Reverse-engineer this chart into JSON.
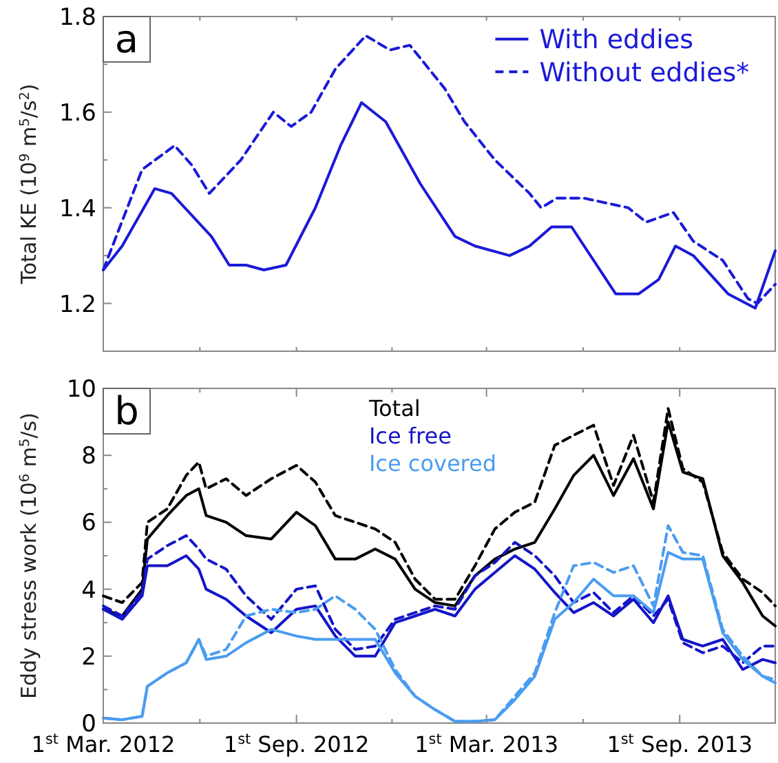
{
  "chart_data": [
    {
      "type": "line",
      "ylabel": "Total KE (10$^{9}$ m$^{5}$/s$^{2}$)",
      "annotations": [
        "a"
      ],
      "legend": "top right",
      "tick_labels": "y",
      "xlim": [
        "2012-03-01",
        "2013-12-01"
      ],
      "xticks": [
        {
          "value": "2012-03-01",
          "label": null
        },
        {
          "value": "2012-06-01",
          "label": null
        },
        {
          "value": "2012-09-01",
          "label": null
        },
        {
          "value": "2012-12-01",
          "label": null
        },
        {
          "value": "2013-03-01",
          "label": null
        },
        {
          "value": "2013-06-01",
          "label": null
        },
        {
          "value": "2013-09-01",
          "label": null
        }
      ],
      "ylim": [
        1.1,
        1.8
      ],
      "yticks": [
        1.2,
        {
          "value": 1.3,
          "label": null
        },
        1.4,
        {
          "value": 1.5,
          "label": null
        },
        1.6,
        {
          "value": 1.7,
          "label": null
        },
        1.8
      ],
      "series": [
        {
          "name": "With eddies",
          "color": "#1a1ad8",
          "line_style": "solid",
          "x": [
            "2012-03-01",
            "2012-03-19",
            "2012-04-19",
            "2012-05-05",
            "2012-06-12",
            "2012-06-29",
            "2012-07-15",
            "2012-08-01",
            "2012-08-22",
            "2012-09-19",
            "2012-10-13",
            "2012-11-02",
            "2012-11-25",
            "2012-12-28",
            "2013-01-30",
            "2013-02-18",
            "2013-03-23",
            "2013-04-11",
            "2013-05-02",
            "2013-05-21",
            "2013-07-02",
            "2013-07-24",
            "2013-08-12",
            "2013-08-28",
            "2013-09-14",
            "2013-10-17",
            "2013-11-12",
            "2013-12-01"
          ],
          "values": [
            1.27,
            1.32,
            1.44,
            1.43,
            1.34,
            1.28,
            1.28,
            1.27,
            1.28,
            1.4,
            1.53,
            1.62,
            1.58,
            1.45,
            1.34,
            1.32,
            1.3,
            1.32,
            1.36,
            1.36,
            1.22,
            1.22,
            1.25,
            1.32,
            1.3,
            1.22,
            1.19,
            1.31
          ]
        },
        {
          "name": "Without eddies*",
          "color": "#1a1ad8",
          "line_style": "dashed",
          "x": [
            "2012-03-01",
            "2012-04-07",
            "2012-05-08",
            "2012-05-24",
            "2012-06-10",
            "2012-07-10",
            "2012-08-10",
            "2012-08-27",
            "2012-09-15",
            "2012-10-08",
            "2012-11-06",
            "2012-11-29",
            "2012-12-18",
            "2013-01-20",
            "2013-02-08",
            "2013-03-09",
            "2013-04-11",
            "2013-04-22",
            "2013-05-07",
            "2013-06-02",
            "2013-07-14",
            "2013-07-31",
            "2013-08-26",
            "2013-09-14",
            "2013-10-12",
            "2013-11-05",
            "2013-11-14",
            "2013-12-01"
          ],
          "values": [
            1.27,
            1.48,
            1.53,
            1.49,
            1.43,
            1.5,
            1.6,
            1.57,
            1.6,
            1.69,
            1.76,
            1.73,
            1.74,
            1.65,
            1.58,
            1.5,
            1.43,
            1.4,
            1.42,
            1.42,
            1.4,
            1.37,
            1.39,
            1.33,
            1.29,
            1.21,
            1.2,
            1.24
          ]
        }
      ]
    },
    {
      "type": "line",
      "ylabel": "Eddy stress work (10$^{6}$ m$^{5}$/s)",
      "annotations": [
        "b"
      ],
      "legend": "top",
      "xlim": [
        "2012-03-01",
        "2013-12-01"
      ],
      "xticks": [
        {
          "value": "2012-03-01",
          "label": "1$^{st}$ Mar. 2012"
        },
        {
          "value": "2012-06-01",
          "label": null
        },
        {
          "value": "2012-09-01",
          "label": "1$^{st}$ Sep. 2012"
        },
        {
          "value": "2012-12-01",
          "label": null
        },
        {
          "value": "2013-03-01",
          "label": "1$^{st}$ Mar. 2013"
        },
        {
          "value": "2013-06-01",
          "label": null
        },
        {
          "value": "2013-09-01",
          "label": "1$^{st}$ Sep. 2013"
        }
      ],
      "ylim": [
        0,
        10
      ],
      "yticks": [
        0,
        {
          "value": 1,
          "label": null
        },
        2,
        {
          "value": 3,
          "label": null
        },
        4,
        {
          "value": 5,
          "label": null
        },
        6,
        {
          "value": 7,
          "label": null
        },
        8,
        {
          "value": 9,
          "label": null
        },
        10
      ],
      "x": [
        "2012-03-01",
        "2012-03-19",
        "2012-04-07",
        "2012-04-12",
        "2012-05-01",
        "2012-05-19",
        "2012-05-31",
        "2012-06-07",
        "2012-06-26",
        "2012-07-15",
        "2012-08-08",
        "2012-09-01",
        "2012-09-19",
        "2012-10-08",
        "2012-10-27",
        "2012-11-15",
        "2012-12-04",
        "2012-12-23",
        "2013-01-11",
        "2013-01-30",
        "2013-02-18",
        "2013-03-09",
        "2013-03-28",
        "2013-04-16",
        "2013-05-05",
        "2013-05-23",
        "2013-06-11",
        "2013-06-30",
        "2013-07-19",
        "2013-08-07",
        "2013-08-21",
        "2013-09-04",
        "2013-09-23",
        "2013-10-12",
        "2013-10-31",
        "2013-11-19",
        "2013-12-01"
      ],
      "series": [
        {
          "name": "Total",
          "color": "#000000",
          "line_style": "solid",
          "values": [
            3.4,
            3.2,
            4.0,
            5.5,
            6.2,
            6.8,
            7.0,
            6.2,
            6.0,
            5.6,
            5.5,
            6.3,
            5.9,
            4.9,
            4.9,
            5.2,
            4.9,
            4.0,
            3.6,
            3.5,
            4.4,
            4.9,
            5.2,
            5.4,
            6.4,
            7.4,
            8.0,
            6.8,
            7.9,
            6.4,
            9.0,
            7.5,
            7.3,
            5.0,
            4.2,
            3.2,
            2.9
          ]
        },
        {
          "color": "#000000",
          "line_style": "dashed",
          "values": [
            3.8,
            3.6,
            4.2,
            6.0,
            6.4,
            7.4,
            7.8,
            7.0,
            7.3,
            6.8,
            7.3,
            7.7,
            7.2,
            6.2,
            6.0,
            5.8,
            5.4,
            4.3,
            3.7,
            3.7,
            4.7,
            5.8,
            6.3,
            6.6,
            8.3,
            8.6,
            8.9,
            7.1,
            8.6,
            6.6,
            9.4,
            7.6,
            7.2,
            5.1,
            4.3,
            3.9,
            3.5
          ]
        },
        {
          "name": "Ice free",
          "color": "#1414c8",
          "line_style": "solid",
          "values": [
            3.4,
            3.1,
            3.8,
            4.7,
            4.7,
            5.0,
            4.6,
            4.0,
            3.7,
            3.2,
            2.7,
            3.4,
            3.5,
            2.6,
            2.0,
            2.0,
            3.0,
            3.2,
            3.4,
            3.2,
            4.0,
            4.5,
            5.0,
            4.6,
            3.9,
            3.3,
            3.6,
            3.2,
            3.7,
            3.0,
            3.8,
            2.5,
            2.3,
            2.5,
            1.6,
            1.9,
            1.8
          ]
        },
        {
          "color": "#1414c8",
          "line_style": "dashed",
          "values": [
            3.5,
            3.2,
            3.9,
            4.9,
            5.3,
            5.6,
            5.2,
            4.9,
            4.6,
            3.8,
            3.1,
            4.0,
            4.1,
            2.8,
            2.2,
            2.3,
            3.1,
            3.3,
            3.5,
            3.4,
            4.4,
            4.8,
            5.4,
            5.0,
            4.4,
            3.6,
            3.9,
            3.3,
            3.8,
            3.2,
            3.7,
            2.4,
            2.1,
            2.3,
            1.8,
            2.3,
            2.3
          ]
        },
        {
          "name": "Ice covered",
          "color": "#4a9cf0",
          "line_style": "solid",
          "values": [
            0.15,
            0.1,
            0.2,
            1.1,
            1.5,
            1.8,
            2.5,
            1.9,
            2.0,
            2.4,
            2.8,
            2.6,
            2.5,
            2.5,
            2.5,
            2.5,
            1.5,
            0.8,
            0.4,
            0.05,
            0.05,
            0.1,
            0.7,
            1.4,
            3.1,
            3.6,
            4.3,
            3.8,
            3.8,
            3.3,
            5.1,
            4.9,
            4.9,
            2.7,
            1.9,
            1.4,
            1.2
          ]
        },
        {
          "color": "#4a9cf0",
          "line_style": "dashed",
          "values": [
            0.15,
            0.1,
            0.2,
            1.1,
            1.5,
            1.8,
            2.5,
            2.0,
            2.2,
            3.2,
            3.4,
            3.3,
            3.4,
            3.8,
            3.4,
            2.8,
            1.6,
            0.8,
            0.4,
            0.05,
            0.05,
            0.1,
            0.8,
            1.5,
            3.3,
            4.7,
            4.8,
            4.5,
            4.7,
            3.5,
            5.9,
            5.1,
            5.0,
            2.8,
            2.0,
            1.4,
            1.3
          ]
        }
      ]
    }
  ]
}
